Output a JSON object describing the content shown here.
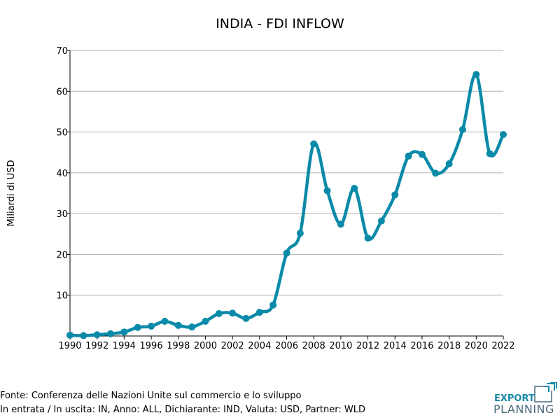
{
  "chart_data": {
    "type": "line",
    "title": "INDIA - FDI INFLOW",
    "xlabel": "",
    "ylabel": "Miliardi di USD",
    "xlim": [
      1990,
      2022
    ],
    "ylim": [
      0,
      70
    ],
    "yticks": [
      10,
      20,
      30,
      40,
      50,
      60,
      70
    ],
    "xticks": [
      1990,
      1992,
      1994,
      1996,
      1998,
      2000,
      2002,
      2004,
      2006,
      2008,
      2010,
      2012,
      2014,
      2016,
      2018,
      2020,
      2022
    ],
    "grid": "horizontal",
    "color": "#0a8aa8",
    "x": [
      1990,
      1991,
      1992,
      1993,
      1994,
      1995,
      1996,
      1997,
      1998,
      1999,
      2000,
      2001,
      2002,
      2003,
      2004,
      2005,
      2006,
      2007,
      2008,
      2009,
      2010,
      2011,
      2012,
      2013,
      2014,
      2015,
      2016,
      2017,
      2018,
      2019,
      2020,
      2021,
      2022
    ],
    "y": [
      0.2,
      0.1,
      0.3,
      0.55,
      0.97,
      2.1,
      2.4,
      3.6,
      2.6,
      2.2,
      3.6,
      5.5,
      5.6,
      4.3,
      5.8,
      7.6,
      20.3,
      25.2,
      47.1,
      35.6,
      27.4,
      36.2,
      24.0,
      28.2,
      34.6,
      44.1,
      44.5,
      39.9,
      42.2,
      50.6,
      64.1,
      44.7,
      49.4
    ]
  },
  "footer": {
    "source": "Fonte: Conferenza delle Nazioni Unite sul commercio e lo sviluppo",
    "params": "In entrata / In uscita: IN, Anno: ALL, Dichiarante: IND, Valuta: USD, Partner: WLD"
  },
  "logo": {
    "line1": "EXPORT",
    "line2": "PLANNING"
  }
}
